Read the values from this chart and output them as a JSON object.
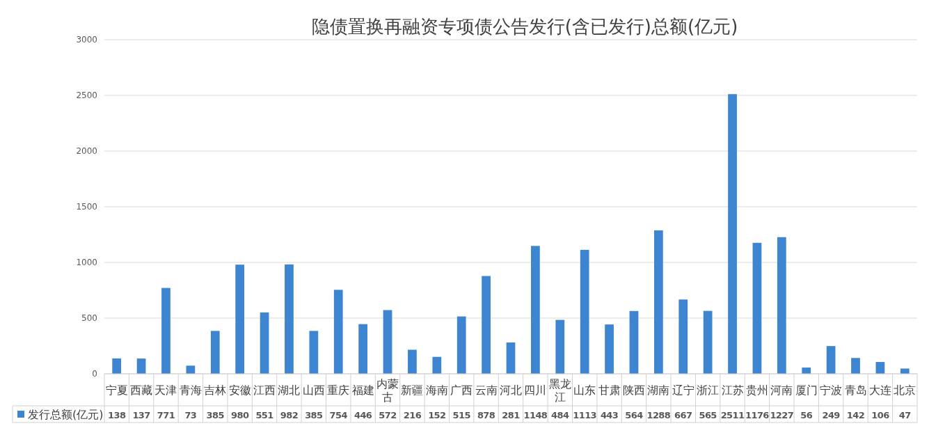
{
  "chart_data": {
    "type": "bar",
    "title": "隐债置换再融资专项债公告发行(含已发行)总额(亿元)",
    "categories": [
      "宁夏",
      "西藏",
      "天津",
      "青海",
      "吉林",
      "安徽",
      "江西",
      "湖北",
      "山西",
      "重庆",
      "福建",
      "内蒙古",
      "新疆",
      "海南",
      "广西",
      "云南",
      "河北",
      "四川",
      "黑龙江",
      "山东",
      "甘肃",
      "陕西",
      "湖南",
      "辽宁",
      "浙江",
      "江苏",
      "贵州",
      "河南",
      "厦门",
      "宁波",
      "青岛",
      "大连",
      "北京"
    ],
    "series": [
      {
        "name": "发行总额(亿元)",
        "color": "#3d85d1",
        "values": [
          138,
          137,
          771,
          73,
          385,
          980,
          551,
          982,
          385,
          754,
          446,
          572,
          216,
          152,
          515,
          878,
          281,
          1148,
          484,
          1113,
          443,
          564,
          1288,
          667,
          565,
          2511,
          1176,
          1227,
          56,
          249,
          142,
          106,
          47
        ]
      }
    ],
    "ylim": [
      0,
      3000
    ],
    "yticks": [
      0,
      500,
      1000,
      1500,
      2000,
      2500,
      3000
    ],
    "grid": "y",
    "legend": "bottom",
    "data_labels": true
  }
}
